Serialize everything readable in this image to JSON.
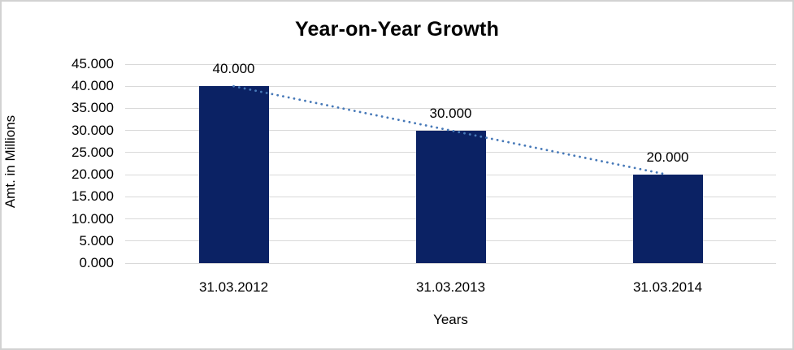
{
  "window": {
    "background": "#ffffff",
    "border_color": "#d2d2d2"
  },
  "chart_data": {
    "type": "bar",
    "title": "Year-on-Year Growth",
    "xlabel": "Years",
    "ylabel": "Amt. in Millions",
    "categories": [
      "31.03.2012",
      "31.03.2013",
      "31.03.2014"
    ],
    "values": [
      40,
      30,
      20
    ],
    "value_labels": [
      "40.000",
      "30.000",
      "20.000"
    ],
    "ylim": [
      0,
      45
    ],
    "ytick_step": 5,
    "ytick_labels": [
      "45.000",
      "40.000",
      "35.000",
      "30.000",
      "25.000",
      "20.000",
      "15.000",
      "10.000",
      "5.000",
      "0.000"
    ],
    "grid": true,
    "legend": "none",
    "colors": {
      "bar": "#0b2264",
      "trendline": "#4779b8",
      "gridline": "#d9d9d9",
      "text": "#000000"
    },
    "trendline": {
      "type": "linear",
      "style": "dotted",
      "from_value": 40,
      "to_value": 20
    }
  }
}
